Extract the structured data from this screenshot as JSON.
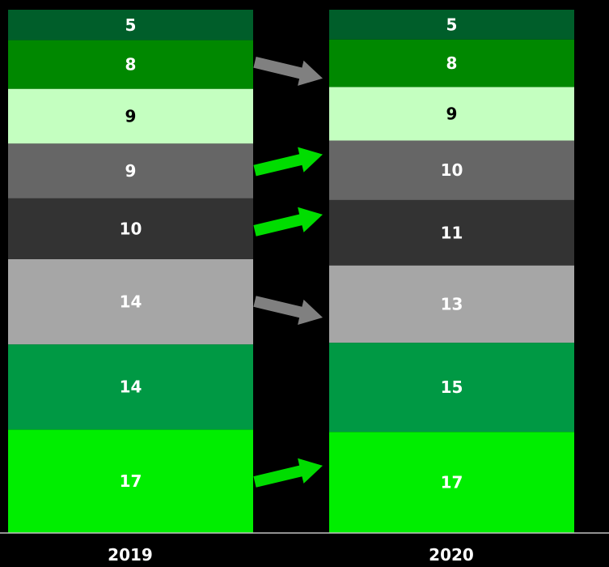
{
  "chart_data": {
    "type": "bar",
    "stacked": true,
    "categories": [
      "2019",
      "2020"
    ],
    "series": [
      {
        "values": [
          17,
          17
        ],
        "color": "#00ee00",
        "label_color": "#ffffff"
      },
      {
        "values": [
          14,
          15
        ],
        "color": "#009944",
        "label_color": "#ffffff"
      },
      {
        "values": [
          14,
          13
        ],
        "color": "#a6a6a6",
        "label_color": "#ffffff"
      },
      {
        "values": [
          10,
          11
        ],
        "color": "#333333",
        "label_color": "#ffffff"
      },
      {
        "values": [
          9,
          10
        ],
        "color": "#666666",
        "label_color": "#ffffff"
      },
      {
        "values": [
          9,
          9
        ],
        "color": "#c4ffc0",
        "label_color": "#000000"
      },
      {
        "values": [
          8,
          8
        ],
        "color": "#008800",
        "label_color": "#ffffff"
      },
      {
        "values": [
          5,
          5
        ],
        "color": "#005e2a",
        "label_color": "#ffffff"
      }
    ],
    "changes": [
      "up",
      "flat",
      "down",
      "up",
      "up",
      "flat",
      "down",
      "flat"
    ],
    "change_colors": {
      "up": "#00dd00",
      "down": "#808080"
    },
    "labels": [
      [
        "17",
        "14",
        "14",
        "10",
        "9",
        "9",
        "8",
        "5"
      ],
      [
        "17",
        "15",
        "13",
        "11",
        "10",
        "9",
        "8",
        "5"
      ]
    ],
    "background": "#000000",
    "axis_color": "#bfbfbf",
    "grid": false,
    "legend": "none"
  }
}
